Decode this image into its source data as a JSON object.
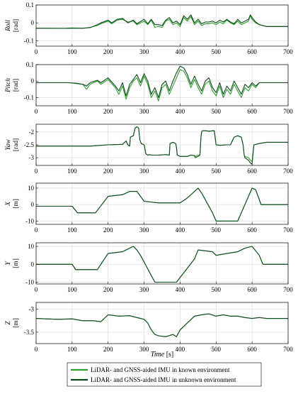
{
  "figure": {
    "x_axis": {
      "label_name": "Time",
      "label_unit": "[s]",
      "xlim": [
        0,
        700
      ],
      "ticks": [
        0,
        100,
        200,
        300,
        400,
        500,
        600,
        700
      ]
    },
    "legend": {
      "placement": "bottom-center",
      "entries": [
        {
          "label": "LiDAR- and GNSS-aided IMU in known environment",
          "color": "#2ca02c"
        },
        {
          "label": "LiDAR- and GNSS-aided IMU in unknown environment",
          "color": "#0f4a1c"
        }
      ]
    },
    "grid": true
  },
  "chart_data": [
    {
      "type": "line",
      "ylabel_name": "Roll",
      "ylabel_unit": "[rad]",
      "ylim": [
        -0.13,
        0.1
      ],
      "yticks": [
        0.1,
        0,
        -0.1
      ],
      "ytick_labels": [
        "0.1",
        "0",
        "-0.1"
      ],
      "x": [
        0,
        80,
        100,
        130,
        150,
        170,
        180,
        200,
        210,
        225,
        240,
        255,
        270,
        280,
        300,
        310,
        320,
        330,
        340,
        350,
        360,
        370,
        380,
        390,
        400,
        410,
        420,
        430,
        440,
        450,
        460,
        470,
        480,
        490,
        500,
        510,
        520,
        530,
        540,
        550,
        560,
        570,
        580,
        590,
        595,
        600,
        610,
        620,
        640,
        700
      ],
      "series": [
        {
          "name": "LiDAR- and GNSS-aided IMU in known environment",
          "values": [
            -0.03,
            -0.03,
            -0.028,
            -0.03,
            -0.025,
            -0.015,
            -0.005,
            0.01,
            -0.005,
            0.015,
            0.02,
            0.005,
            0.01,
            -0.01,
            0.01,
            -0.01,
            0.015,
            -0.025,
            -0.02,
            -0.025,
            0.01,
            0.02,
            -0.01,
            0.0,
            -0.02,
            0.03,
            0.01,
            0.035,
            -0.01,
            0.01,
            -0.015,
            -0.005,
            -0.005,
            0.0,
            -0.01,
            0.005,
            -0.005,
            0.015,
            0.0,
            -0.01,
            0.01,
            -0.01,
            0.0,
            0.01,
            0.04,
            0.02,
            0.0,
            -0.01,
            -0.02,
            -0.02
          ]
        },
        {
          "name": "LiDAR- and GNSS-aided IMU in unknown environment",
          "values": [
            -0.03,
            -0.031,
            -0.03,
            -0.03,
            -0.027,
            -0.01,
            0.0,
            0.015,
            0.0,
            0.02,
            0.025,
            0.0,
            0.015,
            -0.005,
            0.02,
            -0.005,
            0.02,
            -0.01,
            -0.01,
            -0.015,
            0.015,
            0.03,
            0.0,
            0.01,
            -0.01,
            0.04,
            0.02,
            0.045,
            0.0,
            0.02,
            -0.005,
            0.005,
            0.005,
            0.01,
            0.0,
            0.015,
            0.005,
            0.02,
            0.005,
            -0.005,
            0.02,
            0.0,
            0.01,
            0.02,
            0.045,
            0.03,
            0.005,
            -0.01,
            -0.02,
            -0.02
          ]
        }
      ]
    },
    {
      "type": "line",
      "ylabel_name": "Pitch",
      "ylabel_unit": "[rad]",
      "ylim": [
        -0.15,
        0.1
      ],
      "yticks": [
        0.1,
        0,
        -0.1
      ],
      "ytick_labels": [
        "0.1",
        "0",
        "-0.1"
      ],
      "x": [
        0,
        90,
        110,
        130,
        140,
        150,
        170,
        180,
        200,
        220,
        230,
        240,
        250,
        260,
        270,
        280,
        290,
        300,
        310,
        320,
        330,
        340,
        350,
        360,
        370,
        380,
        390,
        400,
        410,
        420,
        430,
        440,
        450,
        460,
        470,
        480,
        490,
        500,
        510,
        520,
        530,
        540,
        550,
        560,
        570,
        580,
        590,
        600,
        610,
        620,
        640,
        700
      ],
      "series": [
        {
          "name": "LiDAR- and GNSS-aided IMU in known environment",
          "values": [
            -0.01,
            -0.01,
            -0.015,
            -0.02,
            -0.05,
            -0.02,
            0.0,
            -0.02,
            0.01,
            -0.04,
            -0.08,
            -0.03,
            -0.11,
            -0.04,
            0.0,
            0.02,
            -0.03,
            0.03,
            -0.02,
            -0.1,
            -0.06,
            -0.12,
            -0.04,
            -0.02,
            -0.08,
            -0.03,
            0.02,
            0.07,
            0.06,
            0.02,
            -0.04,
            0.01,
            -0.04,
            -0.08,
            -0.02,
            0.0,
            -0.06,
            -0.09,
            -0.03,
            -0.1,
            -0.05,
            -0.08,
            -0.02,
            -0.06,
            -0.1,
            -0.04,
            -0.06,
            -0.02,
            -0.04,
            -0.01,
            -0.01,
            -0.01
          ]
        },
        {
          "name": "LiDAR- and GNSS-aided IMU in unknown environment",
          "values": [
            -0.01,
            -0.01,
            -0.012,
            -0.02,
            -0.03,
            -0.01,
            0.005,
            -0.01,
            0.02,
            -0.03,
            -0.06,
            -0.01,
            -0.09,
            -0.02,
            0.01,
            0.04,
            -0.01,
            0.045,
            0.0,
            -0.08,
            -0.04,
            -0.1,
            -0.02,
            0.0,
            -0.06,
            0.0,
            0.05,
            0.09,
            0.08,
            0.04,
            -0.02,
            0.03,
            -0.02,
            -0.06,
            0.0,
            0.02,
            -0.04,
            -0.07,
            -0.01,
            -0.08,
            -0.03,
            -0.06,
            0.0,
            -0.04,
            -0.08,
            -0.02,
            -0.04,
            -0.01,
            -0.03,
            -0.01,
            -0.01,
            -0.01
          ]
        }
      ]
    },
    {
      "type": "line",
      "ylabel_name": "Yaw",
      "ylabel_unit": "[rad]",
      "ylim": [
        -3.3,
        -1.7
      ],
      "yticks": [
        -2,
        -2.5,
        -3
      ],
      "ytick_labels": [
        "-2",
        "-2.5",
        "-3"
      ],
      "x": [
        0,
        150,
        200,
        240,
        250,
        255,
        260,
        262,
        270,
        275,
        280,
        285,
        288,
        292,
        300,
        305,
        310,
        315,
        320,
        340,
        360,
        370,
        372,
        380,
        388,
        390,
        392,
        400,
        420,
        430,
        440,
        442,
        450,
        455,
        458,
        460,
        462,
        470,
        480,
        495,
        500,
        510,
        530,
        540,
        550,
        560,
        570,
        575,
        578,
        580,
        590,
        595,
        600,
        605,
        620,
        640,
        660,
        700
      ],
      "series": [
        {
          "name": "LiDAR- and GNSS-aided IMU in known environment",
          "values": [
            -2.55,
            -2.55,
            -2.5,
            -2.48,
            -2.35,
            -2.5,
            -2.55,
            -2.2,
            -2.15,
            -1.85,
            -1.8,
            -1.85,
            -2.3,
            -2.45,
            -2.5,
            -2.85,
            -2.9,
            -2.88,
            -2.9,
            -2.9,
            -2.88,
            -2.9,
            -2.45,
            -2.4,
            -2.45,
            -2.6,
            -2.9,
            -2.95,
            -2.95,
            -2.9,
            -2.92,
            -2.95,
            -2.9,
            -2.9,
            -2.2,
            -2.0,
            -1.95,
            -1.95,
            -1.97,
            -1.95,
            -2.5,
            -2.52,
            -2.5,
            -2.5,
            -2.2,
            -2.15,
            -2.2,
            -2.5,
            -2.9,
            -2.95,
            -3.0,
            -3.1,
            -3.15,
            -2.5,
            -2.45,
            -2.4,
            -2.4,
            -2.4
          ]
        },
        {
          "name": "LiDAR- and GNSS-aided IMU in unknown environment",
          "values": [
            -2.55,
            -2.55,
            -2.5,
            -2.48,
            -2.35,
            -2.5,
            -2.55,
            -2.2,
            -2.15,
            -1.85,
            -1.8,
            -1.85,
            -2.3,
            -2.45,
            -2.5,
            -2.85,
            -2.9,
            -2.88,
            -2.9,
            -2.9,
            -2.88,
            -2.9,
            -2.45,
            -2.4,
            -2.45,
            -2.6,
            -2.9,
            -2.95,
            -2.95,
            -2.9,
            -2.92,
            -3.0,
            -2.95,
            -2.9,
            -2.2,
            -2.0,
            -1.95,
            -1.95,
            -1.97,
            -1.95,
            -2.5,
            -2.52,
            -2.5,
            -2.5,
            -2.2,
            -2.15,
            -2.2,
            -2.5,
            -2.9,
            -3.0,
            -3.1,
            -3.2,
            -3.25,
            -2.5,
            -2.45,
            -2.4,
            -2.4,
            -2.4
          ]
        }
      ]
    },
    {
      "type": "line",
      "ylabel_name": "X",
      "ylabel_unit": "[m]",
      "ylim": [
        -12,
        13
      ],
      "yticks": [
        10,
        0,
        -10
      ],
      "ytick_labels": [
        "10",
        "0",
        "-10"
      ],
      "x": [
        0,
        100,
        115,
        165,
        200,
        240,
        260,
        280,
        290,
        300,
        340,
        400,
        420,
        440,
        450,
        460,
        490,
        500,
        530,
        550,
        560,
        580,
        600,
        610,
        625,
        700
      ],
      "series": [
        {
          "name": "LiDAR- and GNSS-aided IMU in known environment",
          "values": [
            -1,
            -1,
            -5,
            -5,
            5,
            6,
            8,
            8,
            5,
            2,
            1,
            1,
            4,
            8,
            10,
            7,
            -5,
            -10,
            -10,
            -10,
            -10,
            0,
            10,
            9,
            0,
            0
          ]
        },
        {
          "name": "LiDAR- and GNSS-aided IMU in unknown environment",
          "values": [
            -1,
            -1,
            -5,
            -5,
            5,
            6,
            8,
            8,
            5,
            2,
            1,
            1,
            4,
            8,
            10,
            7,
            -5,
            -10,
            -10,
            -10,
            -10,
            0,
            10,
            9,
            0,
            0
          ]
        }
      ]
    },
    {
      "type": "line",
      "ylabel_name": "Y",
      "ylabel_unit": "[m]",
      "ylim": [
        -11,
        12
      ],
      "yticks": [
        10,
        0,
        -10
      ],
      "ytick_labels": [
        "10",
        "0",
        "-10"
      ],
      "x": [
        0,
        100,
        110,
        170,
        200,
        240,
        270,
        280,
        290,
        330,
        390,
        440,
        450,
        490,
        500,
        530,
        560,
        580,
        600,
        620,
        630,
        700
      ],
      "series": [
        {
          "name": "LiDAR- and GNSS-aided IMU in known environment",
          "values": [
            0,
            0,
            -3,
            -3,
            6,
            7,
            10,
            8,
            5,
            -10,
            -10,
            3,
            8,
            7,
            5,
            6,
            7,
            9,
            10,
            5,
            0,
            0
          ]
        },
        {
          "name": "LiDAR- and GNSS-aided IMU in unknown environment",
          "values": [
            0,
            0,
            -3,
            -3,
            6,
            7,
            10,
            8,
            5,
            -10,
            -10,
            3,
            8,
            7,
            5,
            6,
            7,
            9,
            10,
            5,
            0,
            0
          ]
        }
      ]
    },
    {
      "type": "line",
      "ylabel_name": "Z",
      "ylabel_unit": "[m]",
      "ylim": [
        -3.75,
        -2.85
      ],
      "yticks": [
        -3,
        -3.5
      ],
      "ytick_labels": [
        "-3",
        "-3.5"
      ],
      "x": [
        0,
        60,
        100,
        130,
        160,
        180,
        200,
        230,
        260,
        280,
        300,
        310,
        320,
        330,
        340,
        360,
        380,
        390,
        400,
        420,
        440,
        460,
        480,
        500,
        520,
        540,
        560,
        580,
        600,
        620,
        640,
        700
      ],
      "series": [
        {
          "name": "LiDAR- and GNSS-aided IMU in known environment",
          "values": [
            -3.2,
            -3.22,
            -3.21,
            -3.25,
            -3.25,
            -3.27,
            -3.12,
            -3.15,
            -3.14,
            -3.18,
            -3.22,
            -3.3,
            -3.45,
            -3.55,
            -3.58,
            -3.6,
            -3.55,
            -3.6,
            -3.45,
            -3.3,
            -3.15,
            -3.12,
            -3.1,
            -3.15,
            -3.12,
            -3.15,
            -3.15,
            -3.18,
            -3.2,
            -3.18,
            -3.2,
            -3.2
          ]
        },
        {
          "name": "LiDAR- and GNSS-aided IMU in unknown environment",
          "values": [
            -3.2,
            -3.22,
            -3.21,
            -3.25,
            -3.25,
            -3.27,
            -3.12,
            -3.15,
            -3.14,
            -3.18,
            -3.22,
            -3.3,
            -3.45,
            -3.55,
            -3.58,
            -3.6,
            -3.55,
            -3.6,
            -3.45,
            -3.3,
            -3.15,
            -3.12,
            -3.1,
            -3.15,
            -3.12,
            -3.15,
            -3.15,
            -3.18,
            -3.2,
            -3.18,
            -3.2,
            -3.2
          ]
        }
      ]
    }
  ]
}
